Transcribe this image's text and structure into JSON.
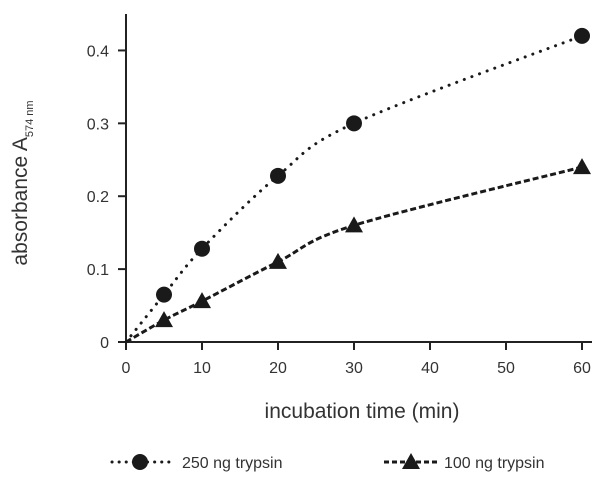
{
  "chart_data": {
    "type": "line",
    "xlabel": "incubation time (min)",
    "ylabel_main": "absorbance A",
    "ylabel_sub": "574 nm",
    "xlim": [
      0,
      60
    ],
    "ylim": [
      0,
      0.45
    ],
    "x_ticks": [
      0,
      10,
      20,
      30,
      40,
      50,
      60
    ],
    "y_ticks": [
      0,
      0.1,
      0.2,
      0.3,
      0.4
    ],
    "y_tick_labels": [
      "0",
      "0.1",
      "0.2",
      "0.3",
      "0.4"
    ],
    "grid": false,
    "legend_position": "bottom",
    "series": [
      {
        "name": "250 ng trypsin",
        "marker": "circle",
        "line_style": "dotted",
        "x": [
          5,
          10,
          20,
          30,
          60
        ],
        "y": [
          0.065,
          0.128,
          0.228,
          0.3,
          0.42
        ]
      },
      {
        "name": "100 ng trypsin",
        "marker": "triangle",
        "line_style": "dashed",
        "x": [
          5,
          10,
          20,
          30,
          60
        ],
        "y": [
          0.03,
          0.056,
          0.11,
          0.16,
          0.24
        ]
      }
    ],
    "colors": {
      "ink": "#1a1a1a",
      "text": "#333333"
    }
  }
}
